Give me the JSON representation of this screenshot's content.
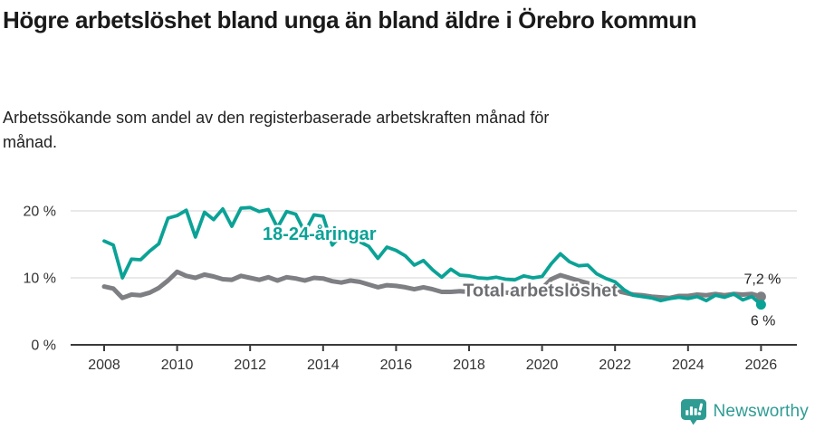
{
  "header": {
    "title": "Högre arbetslöshet bland unga än bland äldre i Örebro kommun",
    "subtitle": "Arbetssökande som andel av den registerbaserade arbetskraften månad för månad."
  },
  "chart_data": {
    "type": "line",
    "title": "Högre arbetslöshet bland unga än bland äldre i Örebro kommun",
    "subtitle": "Arbetssökande som andel av den registerbaserade arbetskraften månad för månad.",
    "x_axis": {
      "ticks": [
        2008,
        2010,
        2012,
        2014,
        2016,
        2018,
        2020,
        2022,
        2024,
        2026
      ]
    },
    "y_axis": {
      "ticks": [
        0,
        10,
        20
      ],
      "suffix": " %"
    },
    "xlim": [
      2007.7,
      2027.0
    ],
    "ylim": [
      0,
      22
    ],
    "grid": "horizontal",
    "legend": "inline-labels",
    "colors": {
      "grid": "#dcdcdc",
      "axis": "#3a3a3a",
      "tick_text": "#333333",
      "end_label_text": "#222222"
    },
    "x_start": 2008.0,
    "x_step": 0.25,
    "series": [
      {
        "name": "18-24-åringar",
        "color": "#0ba296",
        "label_color": "#0ba296",
        "label_at": {
          "x": 2013.9,
          "y": 16.6
        },
        "end_label": "6 %",
        "end_label_side": "below",
        "values": [
          15.5,
          14.9,
          10.0,
          12.8,
          12.7,
          14.0,
          15.1,
          18.9,
          19.3,
          20.1,
          16.1,
          19.8,
          18.7,
          20.3,
          17.7,
          20.4,
          20.5,
          19.9,
          20.2,
          17.5,
          19.9,
          19.5,
          16.8,
          19.4,
          19.2,
          14.9,
          16.4,
          15.9,
          15.4,
          14.7,
          12.9,
          14.6,
          14.1,
          13.3,
          11.9,
          12.6,
          11.2,
          10.1,
          11.3,
          10.4,
          10.3,
          10.0,
          9.9,
          10.1,
          9.8,
          9.7,
          10.3,
          10.0,
          10.2,
          12.1,
          13.6,
          12.4,
          11.8,
          11.9,
          10.6,
          9.9,
          9.4,
          8.2,
          7.4,
          7.2,
          7.0,
          6.6,
          6.9,
          7.1,
          6.9,
          7.2,
          6.6,
          7.4,
          7.1,
          7.6,
          6.7,
          7.2,
          6.0
        ]
      },
      {
        "name": "Total arbetslöshet",
        "color": "#7e7f83",
        "label_color": "#6e6f73",
        "label_at": {
          "x": 2019.95,
          "y": 8.2
        },
        "end_label": "7,2 %",
        "end_label_side": "above",
        "values": [
          8.7,
          8.4,
          7.0,
          7.5,
          7.4,
          7.8,
          8.5,
          9.6,
          10.9,
          10.3,
          10.0,
          10.5,
          10.2,
          9.8,
          9.7,
          10.3,
          10.0,
          9.7,
          10.1,
          9.6,
          10.1,
          9.9,
          9.6,
          10.0,
          9.9,
          9.5,
          9.3,
          9.6,
          9.4,
          9.0,
          8.6,
          8.9,
          8.8,
          8.6,
          8.3,
          8.6,
          8.3,
          7.9,
          7.9,
          8.0,
          7.9,
          7.7,
          7.8,
          7.9,
          7.8,
          7.7,
          7.9,
          8.1,
          8.4,
          9.8,
          10.4,
          10.0,
          9.6,
          9.2,
          8.8,
          8.4,
          8.1,
          7.8,
          7.5,
          7.4,
          7.2,
          7.1,
          7.0,
          7.3,
          7.3,
          7.5,
          7.4,
          7.6,
          7.4,
          7.6,
          7.5,
          7.6,
          7.2
        ]
      }
    ]
  },
  "footer": {
    "brand": "Newsworthy",
    "brand_color": "#2e9c93",
    "logo_icon": "bar-chart-speech-bubble"
  }
}
